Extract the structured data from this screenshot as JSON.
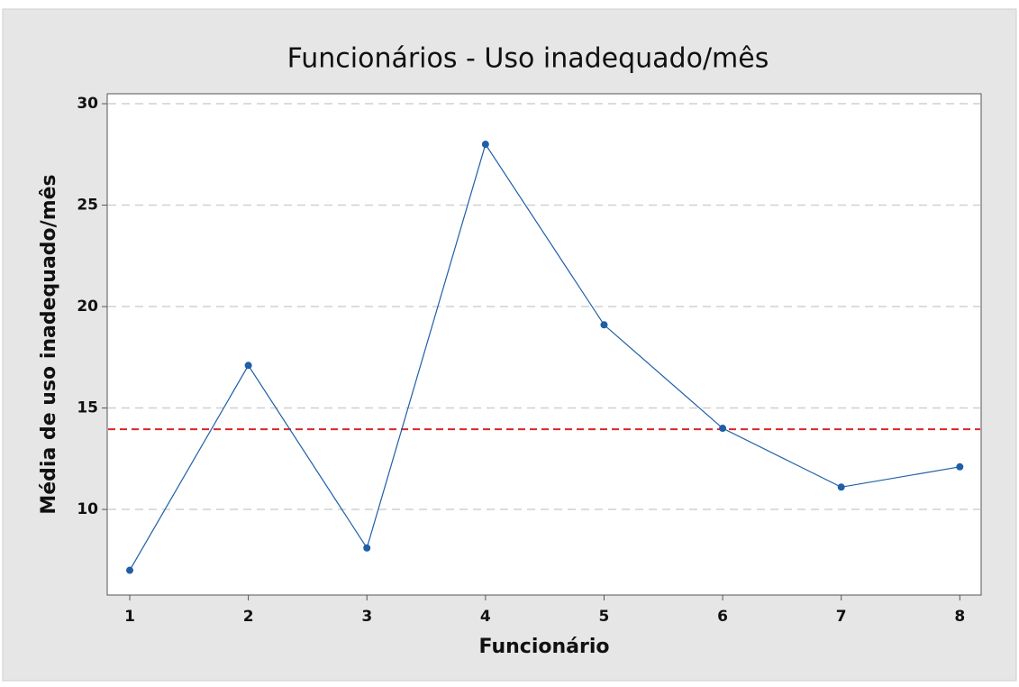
{
  "chart_data": {
    "type": "line",
    "title": "Funcionários - Uso inadequado/mês",
    "xlabel": "Funcionário",
    "ylabel": "Média de uso inadequado/mês",
    "x": [
      1,
      2,
      3,
      4,
      5,
      6,
      7,
      8
    ],
    "series": [
      {
        "color": "#1f5fa6",
        "values": [
          7,
          17.1,
          8.1,
          28,
          19.1,
          14,
          11.1,
          12.1
        ]
      }
    ],
    "xlim": [
      0.81,
      8.18
    ],
    "xticks": [
      1,
      2,
      3,
      4,
      5,
      6,
      7,
      8
    ],
    "ylim": [
      5.78,
      30.49
    ],
    "yticks": [
      10,
      15,
      20,
      25,
      30
    ],
    "grid": true,
    "reference_line": {
      "value": 13.95,
      "color": "#d62728"
    }
  }
}
